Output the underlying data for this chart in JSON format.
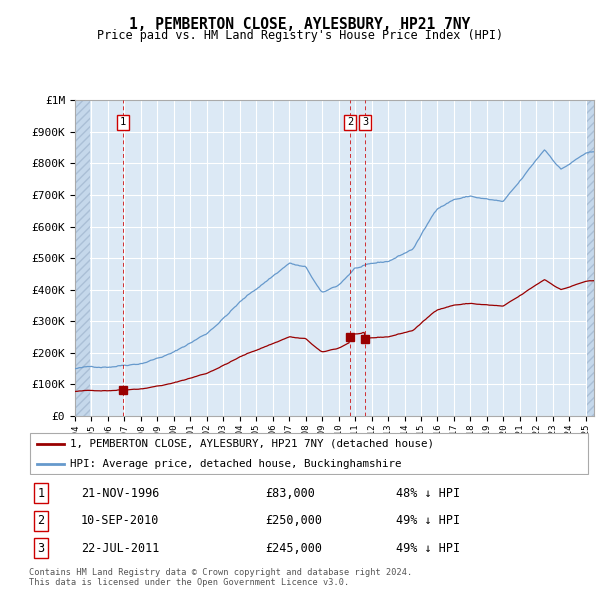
{
  "title": "1, PEMBERTON CLOSE, AYLESBURY, HP21 7NY",
  "subtitle": "Price paid vs. HM Land Registry's House Price Index (HPI)",
  "ylim": [
    0,
    1000000
  ],
  "yticks": [
    0,
    100000,
    200000,
    300000,
    400000,
    500000,
    600000,
    700000,
    800000,
    900000,
    1000000
  ],
  "ytick_labels": [
    "£0",
    "£100K",
    "£200K",
    "£300K",
    "£400K",
    "£500K",
    "£600K",
    "£700K",
    "£800K",
    "£900K",
    "£1M"
  ],
  "xlim_start": 1994.0,
  "xlim_end": 2025.5,
  "red_line_color": "#990000",
  "blue_line_color": "#6699cc",
  "purchases": [
    {
      "label": 1,
      "date_dec": 1996.9,
      "price": 83000
    },
    {
      "label": 2,
      "date_dec": 2010.7,
      "price": 250000
    },
    {
      "label": 3,
      "date_dec": 2011.6,
      "price": 245000
    }
  ],
  "legend_red": "1, PEMBERTON CLOSE, AYLESBURY, HP21 7NY (detached house)",
  "legend_blue": "HPI: Average price, detached house, Buckinghamshire",
  "table_rows": [
    {
      "num": 1,
      "date": "21-NOV-1996",
      "price": "£83,000",
      "pct": "48% ↓ HPI"
    },
    {
      "num": 2,
      "date": "10-SEP-2010",
      "price": "£250,000",
      "pct": "49% ↓ HPI"
    },
    {
      "num": 3,
      "date": "22-JUL-2011",
      "price": "£245,000",
      "pct": "49% ↓ HPI"
    }
  ],
  "footnote": "Contains HM Land Registry data © Crown copyright and database right 2024.\nThis data is licensed under the Open Government Licence v3.0.",
  "background_plot": "#dce9f5",
  "grid_color": "#ffffff"
}
